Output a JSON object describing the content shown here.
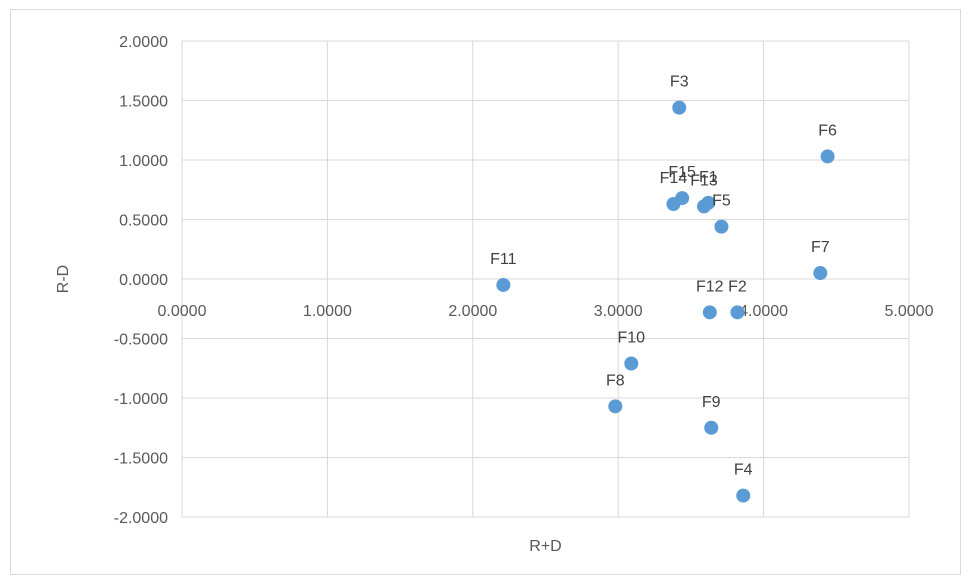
{
  "chart_data": {
    "type": "scatter",
    "xlabel": "R+D",
    "ylabel": "R-D",
    "xlim": [
      0,
      5
    ],
    "ylim": [
      -2,
      2
    ],
    "x_ticks": [
      "0.0000",
      "1.0000",
      "2.0000",
      "3.0000",
      "4.0000",
      "5.0000"
    ],
    "y_ticks": [
      "2.0000",
      "1.5000",
      "1.0000",
      "0.5000",
      "0.0000",
      "-0.5000",
      "-1.0000",
      "-1.5000",
      "-2.0000"
    ],
    "grid": true,
    "legend": "none",
    "marker_color": "#5b9bd5",
    "points": [
      {
        "label": "F1",
        "x": 3.62,
        "y": 0.64
      },
      {
        "label": "F2",
        "x": 3.82,
        "y": -0.28
      },
      {
        "label": "F3",
        "x": 3.42,
        "y": 1.44
      },
      {
        "label": "F4",
        "x": 3.86,
        "y": -1.82
      },
      {
        "label": "F5",
        "x": 3.71,
        "y": 0.44
      },
      {
        "label": "F6",
        "x": 4.44,
        "y": 1.03
      },
      {
        "label": "F7",
        "x": 4.39,
        "y": 0.05
      },
      {
        "label": "F8",
        "x": 2.98,
        "y": -1.07
      },
      {
        "label": "F9",
        "x": 3.64,
        "y": -1.25
      },
      {
        "label": "F10",
        "x": 3.09,
        "y": -0.71
      },
      {
        "label": "F11",
        "x": 2.21,
        "y": -0.05
      },
      {
        "label": "F12",
        "x": 3.63,
        "y": -0.28
      },
      {
        "label": "F13",
        "x": 3.59,
        "y": 0.61
      },
      {
        "label": "F14",
        "x": 3.38,
        "y": 0.63
      },
      {
        "label": "F15",
        "x": 3.44,
        "y": 0.68
      }
    ]
  }
}
